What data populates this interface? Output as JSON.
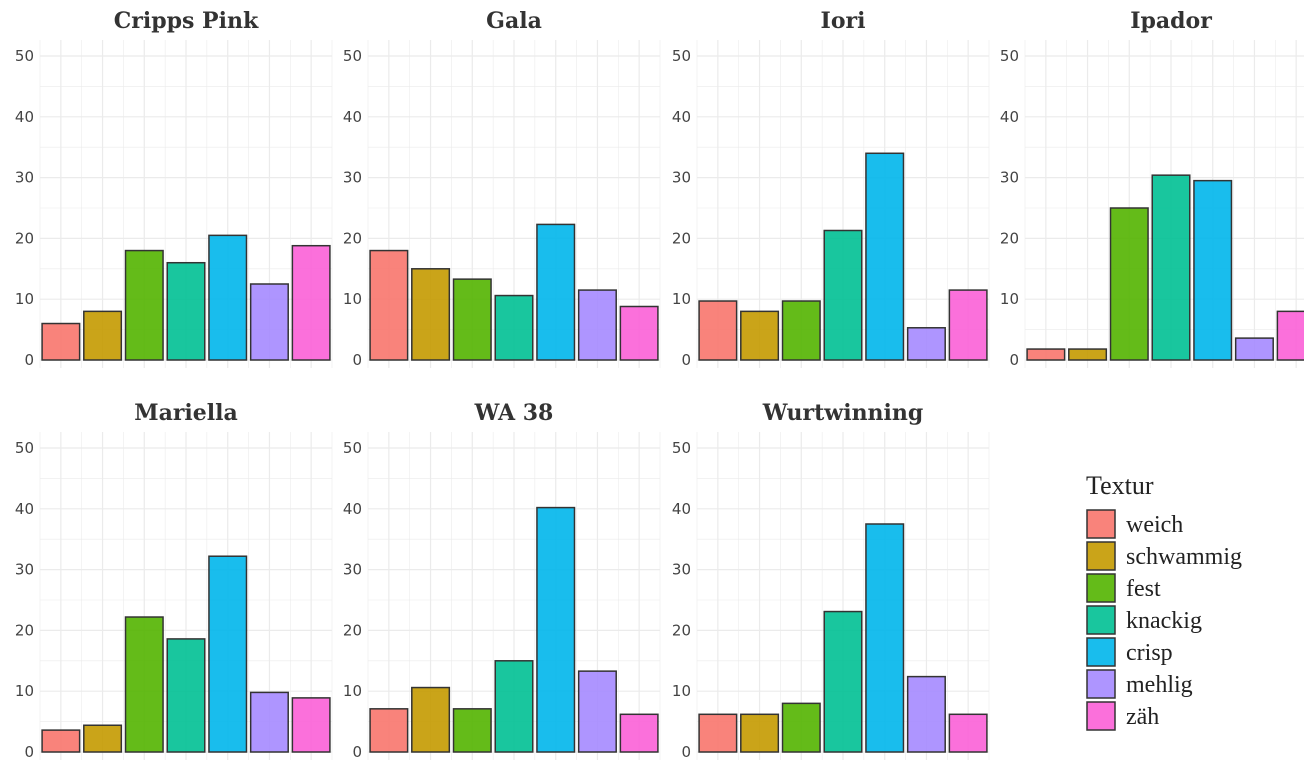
{
  "chart_data": {
    "type": "bar",
    "layout": "facet-grid",
    "ylim": [
      0,
      50
    ],
    "yticks": [
      0,
      10,
      20,
      30,
      40,
      50
    ],
    "grid": true,
    "legend": {
      "title": "Textur",
      "placement": "right",
      "entries": [
        {
          "label": "weich",
          "color": "#F8766D"
        },
        {
          "label": "schwammig",
          "color": "#C49A00"
        },
        {
          "label": "fest",
          "color": "#53B400"
        },
        {
          "label": "knackig",
          "color": "#00C094"
        },
        {
          "label": "crisp",
          "color": "#00B6EB"
        },
        {
          "label": "mehlig",
          "color": "#A58AFF"
        },
        {
          "label": "zäh",
          "color": "#FB61D7"
        }
      ]
    },
    "categories": [
      "weich",
      "schwammig",
      "fest",
      "knackig",
      "crisp",
      "mehlig",
      "zäh"
    ],
    "panels": [
      {
        "title": "Cripps Pink",
        "values": [
          6,
          8,
          18,
          16,
          20.5,
          12.5,
          18.8
        ]
      },
      {
        "title": "Gala",
        "values": [
          18,
          15,
          13.3,
          10.6,
          22.3,
          11.5,
          8.8
        ]
      },
      {
        "title": "Iori",
        "values": [
          9.7,
          8,
          9.7,
          21.3,
          34,
          5.3,
          11.5
        ]
      },
      {
        "title": "Ipador",
        "values": [
          1.8,
          1.8,
          25,
          30.4,
          29.5,
          3.6,
          8
        ]
      },
      {
        "title": "Mariella",
        "values": [
          3.6,
          4.4,
          22.2,
          18.6,
          32.2,
          9.8,
          8.9
        ]
      },
      {
        "title": "WA 38",
        "values": [
          7.1,
          10.6,
          7.1,
          15,
          40.2,
          13.3,
          6.2
        ]
      },
      {
        "title": "Wurtwinning",
        "values": [
          6.2,
          6.2,
          8,
          23.1,
          37.5,
          12.4,
          6.2
        ]
      }
    ]
  }
}
